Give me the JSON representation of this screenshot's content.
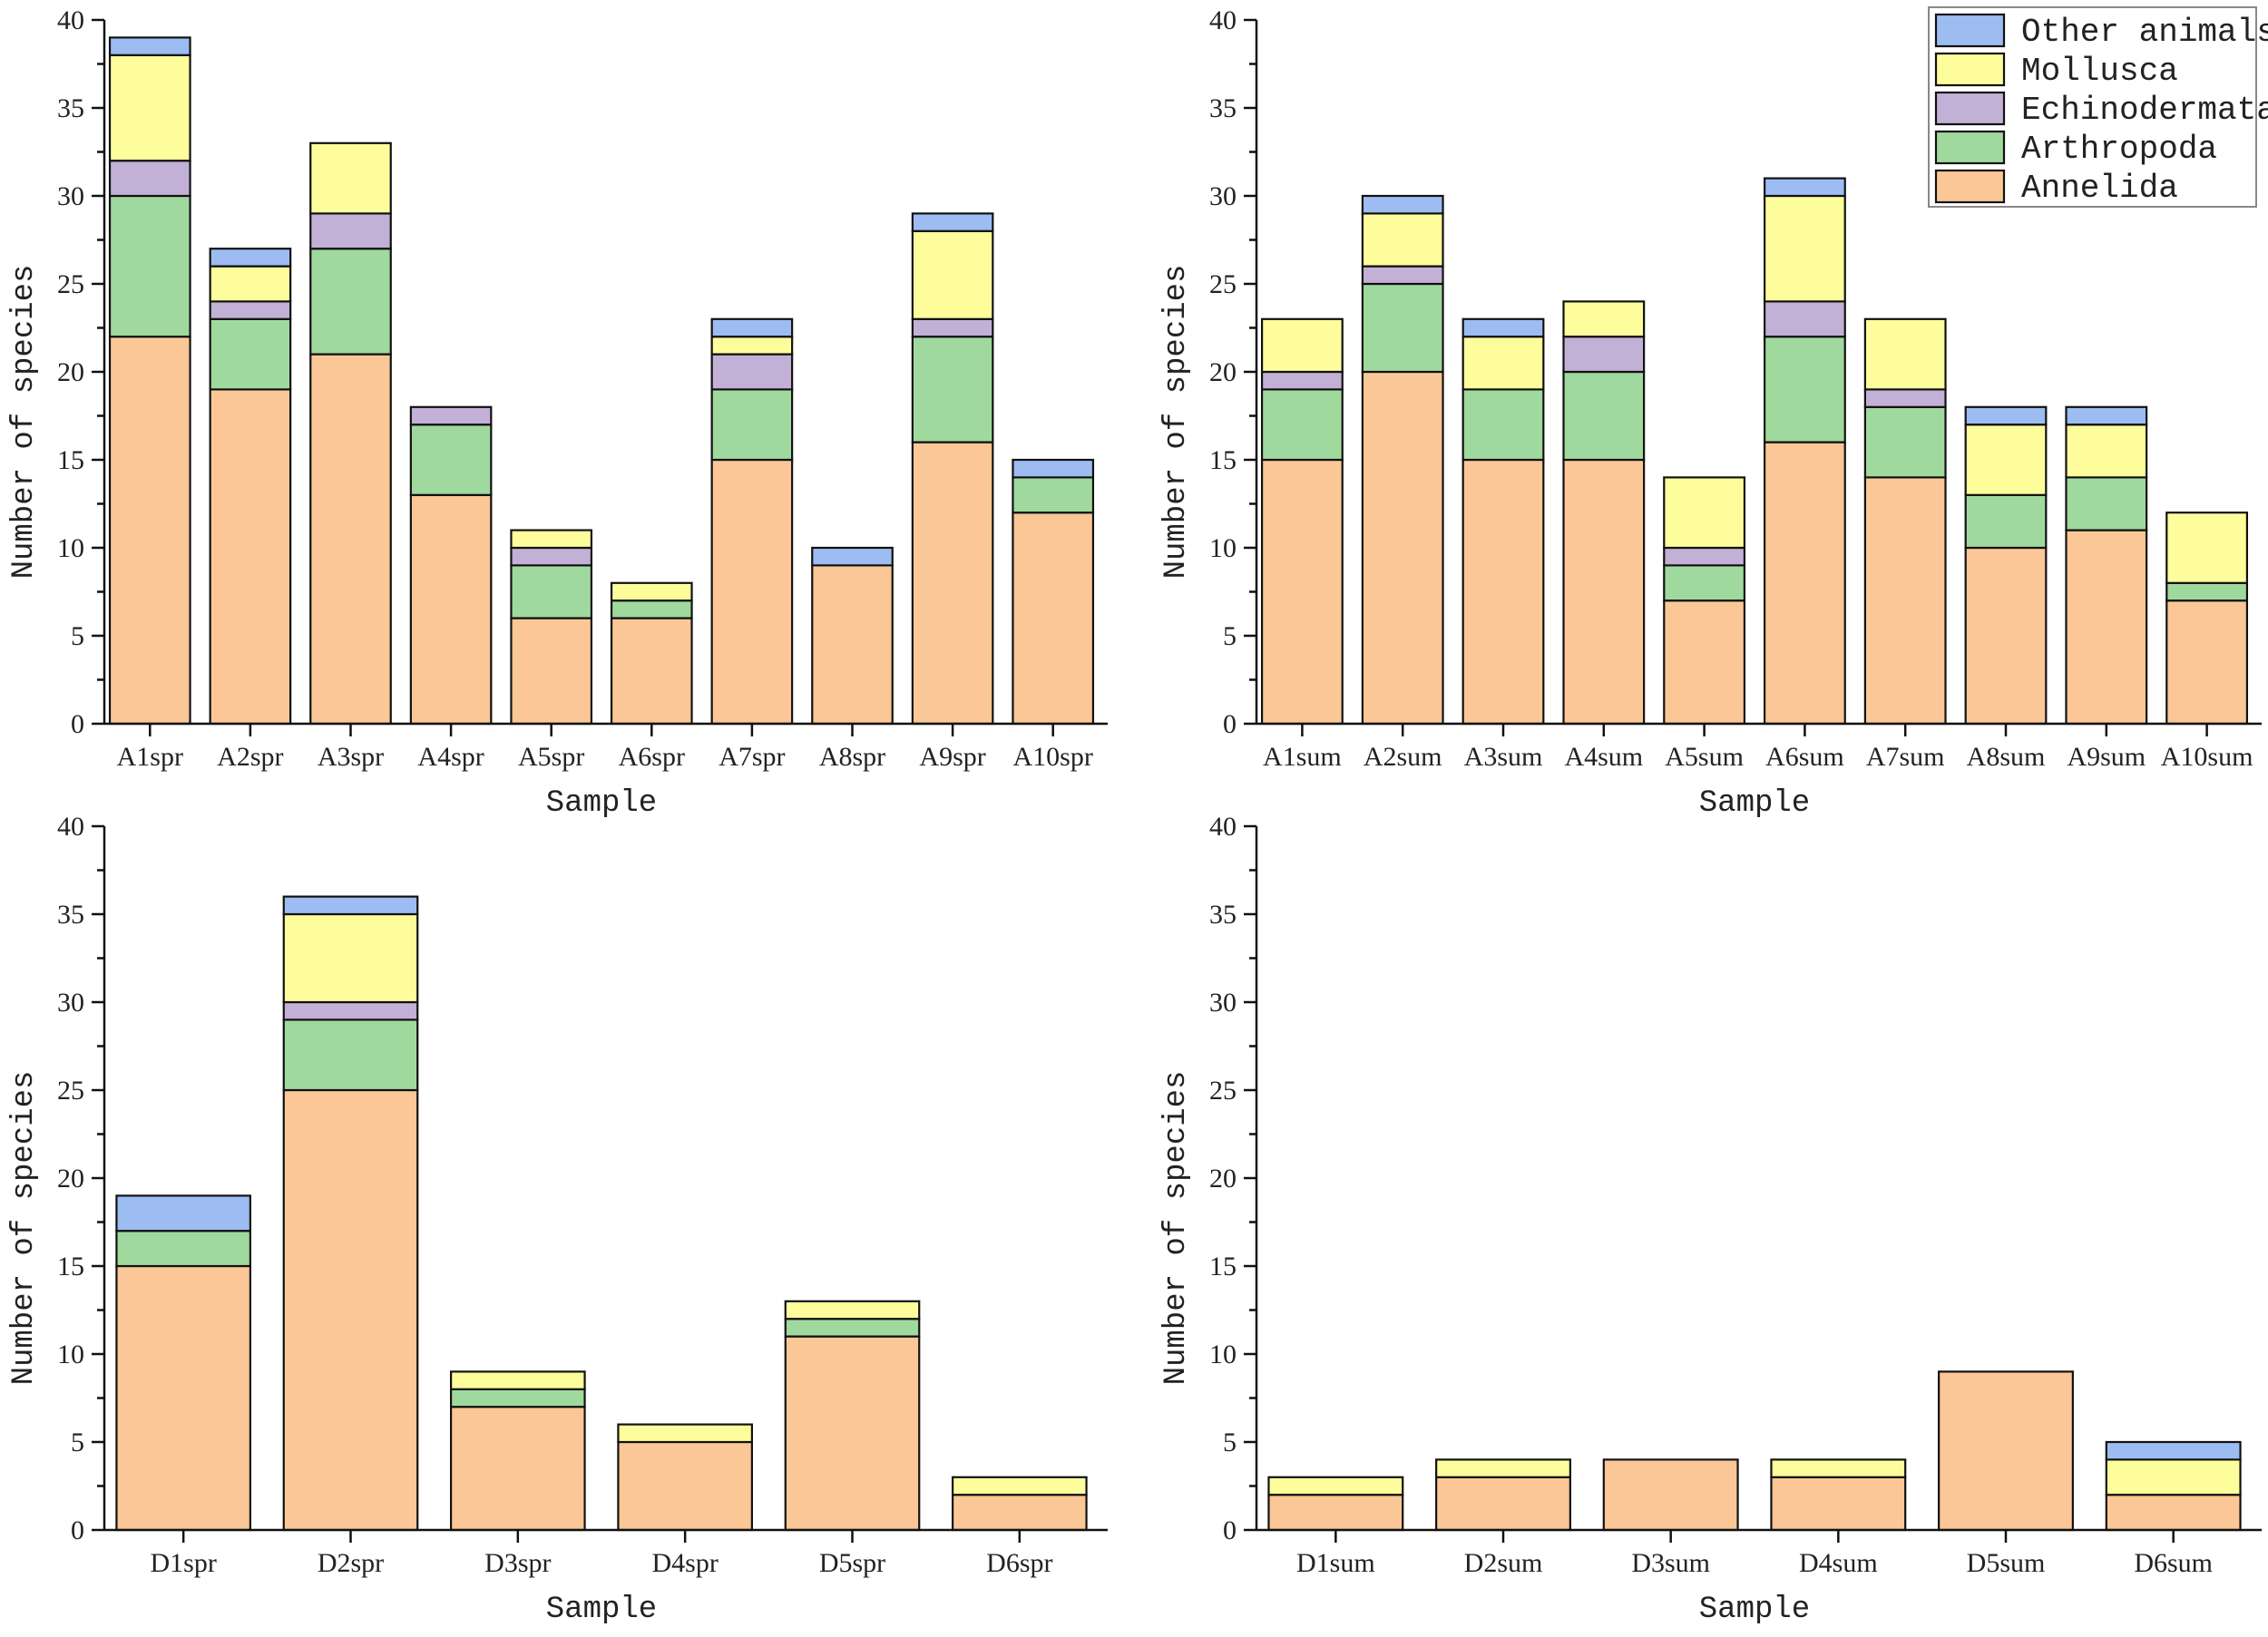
{
  "chart_data": {
    "type": "bar",
    "stacked": true,
    "legend": {
      "placement": "top-right",
      "entries": [
        "Other animals",
        "Mollusca",
        "Echinodermata",
        "Arthropoda",
        "Annelida"
      ]
    },
    "series_names": [
      "Annelida",
      "Arthropoda",
      "Echinodermata",
      "Mollusca",
      "Other animals"
    ],
    "colors": {
      "Annelida": "#fbc796",
      "Arthropoda": "#a0d99d",
      "Echinodermata": "#c2b0d6",
      "Mollusca": "#fefd9c",
      "Other animals": "#9dbcf2"
    },
    "panels": [
      {
        "xlabel": "Sample",
        "ylabel": "Number of species",
        "ylim": [
          0,
          40
        ],
        "yticks": [
          "0",
          "5",
          "10",
          "15",
          "20",
          "25",
          "30",
          "35",
          "40"
        ],
        "categories": [
          "A1spr",
          "A2spr",
          "A3spr",
          "A4spr",
          "A5spr",
          "A6spr",
          "A7spr",
          "A8spr",
          "A9spr",
          "A10spr"
        ],
        "series": [
          {
            "name": "Annelida",
            "values": [
              22,
              19,
              21,
              13,
              6,
              6,
              15,
              9,
              16,
              12
            ]
          },
          {
            "name": "Arthropoda",
            "values": [
              8,
              4,
              6,
              4,
              3,
              1,
              4,
              0,
              6,
              2
            ]
          },
          {
            "name": "Echinodermata",
            "values": [
              2,
              1,
              2,
              1,
              1,
              0,
              2,
              0,
              1,
              0
            ]
          },
          {
            "name": "Mollusca",
            "values": [
              6,
              2,
              4,
              0,
              1,
              1,
              1,
              0,
              5,
              0
            ]
          },
          {
            "name": "Other animals",
            "values": [
              1,
              1,
              0,
              0,
              0,
              0,
              1,
              1,
              1,
              1
            ]
          }
        ]
      },
      {
        "xlabel": "Sample",
        "ylabel": "Number of species",
        "ylim": [
          0,
          40
        ],
        "yticks": [
          "0",
          "5",
          "10",
          "15",
          "20",
          "25",
          "30",
          "35",
          "40"
        ],
        "categories": [
          "A1sum",
          "A2sum",
          "A3sum",
          "A4sum",
          "A5sum",
          "A6sum",
          "A7sum",
          "A8sum",
          "A9sum",
          "A10sum"
        ],
        "series": [
          {
            "name": "Annelida",
            "values": [
              15,
              20,
              15,
              15,
              7,
              16,
              14,
              10,
              11,
              7
            ]
          },
          {
            "name": "Arthropoda",
            "values": [
              4,
              5,
              4,
              5,
              2,
              6,
              4,
              3,
              3,
              1
            ]
          },
          {
            "name": "Echinodermata",
            "values": [
              1,
              1,
              0,
              2,
              1,
              2,
              1,
              0,
              0,
              0
            ]
          },
          {
            "name": "Mollusca",
            "values": [
              3,
              3,
              3,
              2,
              4,
              6,
              4,
              4,
              3,
              4
            ]
          },
          {
            "name": "Other animals",
            "values": [
              0,
              1,
              1,
              0,
              0,
              1,
              0,
              1,
              1,
              0
            ]
          }
        ]
      },
      {
        "xlabel": "Sample",
        "ylabel": "Number of species",
        "ylim": [
          0,
          40
        ],
        "yticks": [
          "0",
          "5",
          "10",
          "15",
          "20",
          "25",
          "30",
          "35",
          "40"
        ],
        "categories": [
          "D1spr",
          "D2spr",
          "D3spr",
          "D4spr",
          "D5spr",
          "D6spr"
        ],
        "series": [
          {
            "name": "Annelida",
            "values": [
              15,
              25,
              7,
              5,
              11,
              2
            ]
          },
          {
            "name": "Arthropoda",
            "values": [
              2,
              4,
              1,
              0,
              1,
              0
            ]
          },
          {
            "name": "Echinodermata",
            "values": [
              0,
              1,
              0,
              0,
              0,
              0
            ]
          },
          {
            "name": "Mollusca",
            "values": [
              0,
              5,
              1,
              1,
              1,
              1
            ]
          },
          {
            "name": "Other animals",
            "values": [
              2,
              1,
              0,
              0,
              0,
              0
            ]
          }
        ]
      },
      {
        "xlabel": "Sample",
        "ylabel": "Number of species",
        "ylim": [
          0,
          40
        ],
        "yticks": [
          "0",
          "5",
          "10",
          "15",
          "20",
          "25",
          "30",
          "35",
          "40"
        ],
        "categories": [
          "D1sum",
          "D2sum",
          "D3sum",
          "D4sum",
          "D5sum",
          "D6sum"
        ],
        "series": [
          {
            "name": "Annelida",
            "values": [
              2,
              3,
              4,
              3,
              9,
              2
            ]
          },
          {
            "name": "Arthropoda",
            "values": [
              0,
              0,
              0,
              0,
              0,
              0
            ]
          },
          {
            "name": "Echinodermata",
            "values": [
              0,
              0,
              0,
              0,
              0,
              0
            ]
          },
          {
            "name": "Mollusca",
            "values": [
              1,
              1,
              0,
              1,
              0,
              2
            ]
          },
          {
            "name": "Other animals",
            "values": [
              0,
              0,
              0,
              0,
              0,
              1
            ]
          }
        ]
      }
    ]
  }
}
